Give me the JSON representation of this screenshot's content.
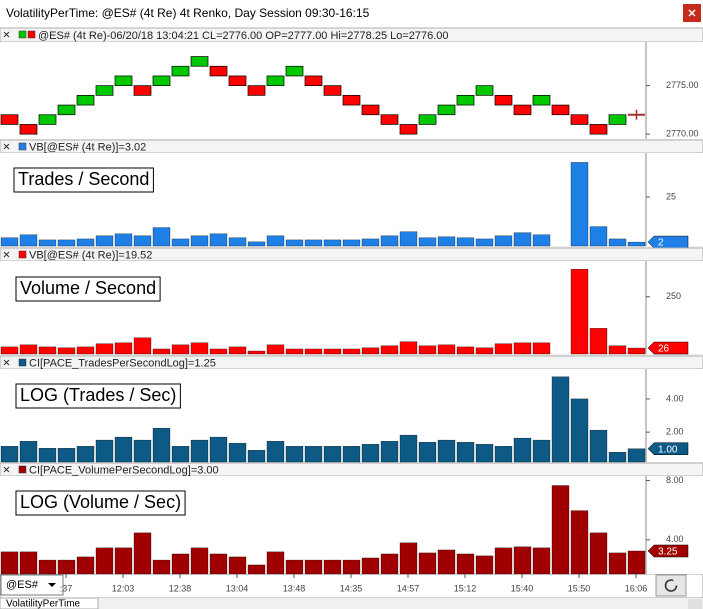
{
  "window": {
    "title": "VolatilityPerTime: @ES# (4t Re) 4t Renko, Day Session 09:30-16:15",
    "tab": "VolatilityPerTime",
    "symbol": "@ES#"
  },
  "time_axis": {
    "categories": [
      null,
      null,
      null,
      ":37",
      null,
      null,
      "12:03",
      null,
      null,
      "12:38",
      null,
      null,
      "13:04",
      null,
      null,
      "13:48",
      null,
      null,
      "14:35",
      null,
      null,
      "14:57",
      null,
      null,
      "15:12",
      null,
      null,
      "15:40",
      null,
      null,
      "15:50",
      null,
      null,
      "16:06"
    ]
  },
  "chart_data": [
    {
      "type": "candlestick",
      "header": "@ES# (4t Re)-06/20/18 13:04:21 CL=2776.00 OP=2777.00 Hi=2778.25 Lo=2776.00",
      "up_color": "#00c800",
      "down_color": "#ff0000",
      "open": [
        2772,
        2771,
        2771,
        2772,
        2773,
        2774,
        2775,
        2775,
        2775,
        2776,
        2777,
        2777,
        2776,
        2775,
        2775,
        2776,
        2776,
        2775,
        2774,
        2773,
        2772,
        2771,
        2771,
        2772,
        2773,
        2774,
        2774,
        2773,
        2773,
        2773,
        2772,
        2771,
        2771,
        2772
      ],
      "close": [
        2771,
        2770,
        2772,
        2773,
        2774,
        2775,
        2776,
        2774,
        2776,
        2777,
        2778,
        2776,
        2775,
        2774,
        2776,
        2777,
        2775,
        2774,
        2773,
        2772,
        2771,
        2770,
        2772,
        2773,
        2774,
        2775,
        2773,
        2772,
        2774,
        2772,
        2771,
        2770,
        2772,
        2772
      ],
      "ylim": [
        2769.5,
        2779.5
      ],
      "yticks": [
        {
          "value": 2775,
          "label": "2775.00"
        },
        {
          "value": 2770,
          "label": "2770.00"
        }
      ]
    },
    {
      "type": "bar",
      "header": "VB[@ES# (4t Re)]=3.02",
      "annotation": "Trades / Second",
      "color": "#1e7fe6",
      "values": [
        4.2,
        5.7,
        3.1,
        3.1,
        3.6,
        5.2,
        6.2,
        5.2,
        9.4,
        3.6,
        5.2,
        6.2,
        4.2,
        2.1,
        5.2,
        3.1,
        3.1,
        3.1,
        3.1,
        3.6,
        5.2,
        7.3,
        4.2,
        4.7,
        4.2,
        3.6,
        5.2,
        6.8,
        5.7,
        null,
        42.6,
        9.9,
        3.6,
        2
      ],
      "ylim": [
        0,
        47.4
      ],
      "yticks": [
        25
      ],
      "marker": {
        "value": 2,
        "label": "2"
      }
    },
    {
      "type": "bar",
      "header": "VB[@ES# (4t Re)]=19.52",
      "annotation": "Volume / Second",
      "color": "#ff0000",
      "values": [
        31,
        40,
        31,
        27,
        31,
        45,
        49,
        71,
        22,
        40,
        49,
        22,
        31,
        13,
        40,
        22,
        22,
        22,
        22,
        27,
        36,
        54,
        36,
        40,
        31,
        27,
        45,
        49,
        49,
        null,
        370,
        112,
        36,
        26
      ],
      "ylim": [
        0,
        406
      ],
      "yticks": [
        250
      ],
      "marker": {
        "value": 26,
        "label": "26"
      }
    },
    {
      "type": "bar",
      "header": "CI[PACE_TradesPerSecondLog]=1.25",
      "annotation": "LOG (Trades / Sec)",
      "color": "#0d5a86",
      "values": [
        1.15,
        1.45,
        1.03,
        1.03,
        1.15,
        1.52,
        1.7,
        1.52,
        2.24,
        1.15,
        1.52,
        1.7,
        1.33,
        0.91,
        1.45,
        1.15,
        1.15,
        1.15,
        1.15,
        1.27,
        1.45,
        1.82,
        1.39,
        1.52,
        1.39,
        1.27,
        1.15,
        1.64,
        1.52,
        5.33,
        4.0,
        2.12,
        0.79,
        1.0
      ],
      "ylim": [
        0.2,
        5.8
      ],
      "yticks": [
        {
          "value": 4,
          "label": "4.00"
        },
        {
          "value": 2,
          "label": "2.00"
        }
      ],
      "marker": {
        "value": 1,
        "label": "1.00"
      }
    },
    {
      "type": "bar",
      "header": "CI[PACE_VolumePerSecondLog]=3.00",
      "annotation": "LOG (Volume / Sec)",
      "color": "#a00000",
      "values": [
        3.19,
        3.19,
        2.64,
        2.64,
        2.85,
        3.46,
        3.46,
        4.47,
        2.64,
        3.05,
        3.46,
        3.05,
        2.85,
        2.31,
        3.19,
        2.64,
        2.64,
        2.64,
        2.64,
        2.78,
        3.05,
        3.8,
        3.12,
        3.32,
        3.05,
        2.92,
        3.46,
        3.53,
        3.46,
        7.66,
        5.97,
        4.47,
        3.12,
        3.25
      ],
      "ylim": [
        1.7,
        8.3
      ],
      "yticks": [
        {
          "value": 8,
          "label": "8.00"
        },
        {
          "value": 4,
          "label": "4.00"
        }
      ],
      "marker": {
        "value": 3.25,
        "label": "3.25"
      }
    }
  ]
}
